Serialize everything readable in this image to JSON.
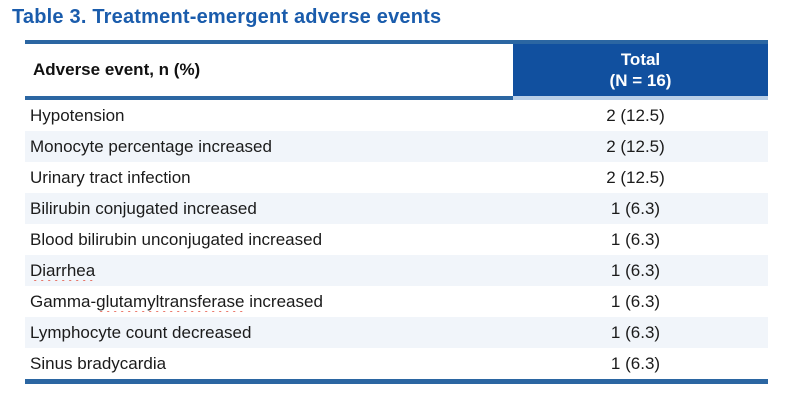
{
  "title": "Table 3. Treatment-emergent adverse events",
  "colors": {
    "title_blue": "#1A5CAC",
    "header_cell_blue": "#11509F",
    "line_blue": "#2B66A2",
    "header_cell_underline": "#B9CFE8",
    "alt_row_bg": "#F1F5FA",
    "body_text": "#1B1B1B",
    "spellcheck_red": "#E0341F"
  },
  "table": {
    "header": {
      "col1": "Adverse event, n (%)",
      "col2_line1": "Total",
      "col2_line2": "(N = 16)"
    },
    "rows": [
      {
        "event": [
          {
            "t": "Hypotension",
            "wavy": false
          }
        ],
        "value": "2 (12.5)"
      },
      {
        "event": [
          {
            "t": "Monocyte percentage increased",
            "wavy": false
          }
        ],
        "value": "2 (12.5)"
      },
      {
        "event": [
          {
            "t": "Urinary tract infection",
            "wavy": false
          }
        ],
        "value": "2 (12.5)"
      },
      {
        "event": [
          {
            "t": "Bilirubin conjugated increased",
            "wavy": false
          }
        ],
        "value": "1 (6.3)"
      },
      {
        "event": [
          {
            "t": "Blood bilirubin unconjugated increased",
            "wavy": false
          }
        ],
        "value": "1 (6.3)"
      },
      {
        "event": [
          {
            "t": "Diarrhea",
            "wavy": true
          }
        ],
        "value": "1 (6.3)"
      },
      {
        "event": [
          {
            "t": "Gamma-",
            "wavy": false
          },
          {
            "t": "glutamyltransferase",
            "wavy": true
          },
          {
            "t": " increased",
            "wavy": false
          }
        ],
        "value": "1 (6.3)"
      },
      {
        "event": [
          {
            "t": "Lymphocyte count decreased",
            "wavy": false
          }
        ],
        "value": "1 (6.3)"
      },
      {
        "event": [
          {
            "t": "Sinus bradycardia",
            "wavy": false
          }
        ],
        "value": "1 (6.3)"
      }
    ]
  }
}
